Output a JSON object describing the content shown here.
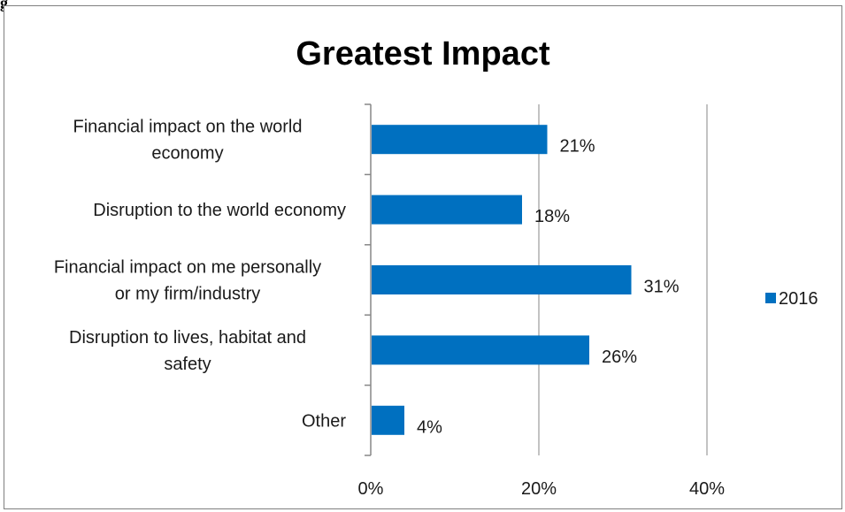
{
  "figure_label": "g",
  "chart_data": {
    "type": "bar",
    "orientation": "horizontal",
    "title": "Greatest Impact",
    "categories": [
      [
        "Financial impact on the world",
        "economy"
      ],
      [
        "Disruption to the world economy"
      ],
      [
        "Financial impact on me personally",
        "or my firm/industry"
      ],
      [
        "Disruption to lives, habitat and",
        "safety"
      ],
      [
        "Other"
      ]
    ],
    "series": [
      {
        "name": "2016",
        "color": "#0070c0",
        "values": [
          21,
          18,
          31,
          26,
          4
        ],
        "labels": [
          "21%",
          "18%",
          "31%",
          "26%",
          "4%"
        ]
      }
    ],
    "xlim": [
      0,
      40
    ],
    "xticks": [
      0,
      20,
      40
    ],
    "xtick_labels": [
      "0%",
      "20%",
      "40%"
    ],
    "gridlines": "vertical",
    "legend_position": "right"
  }
}
